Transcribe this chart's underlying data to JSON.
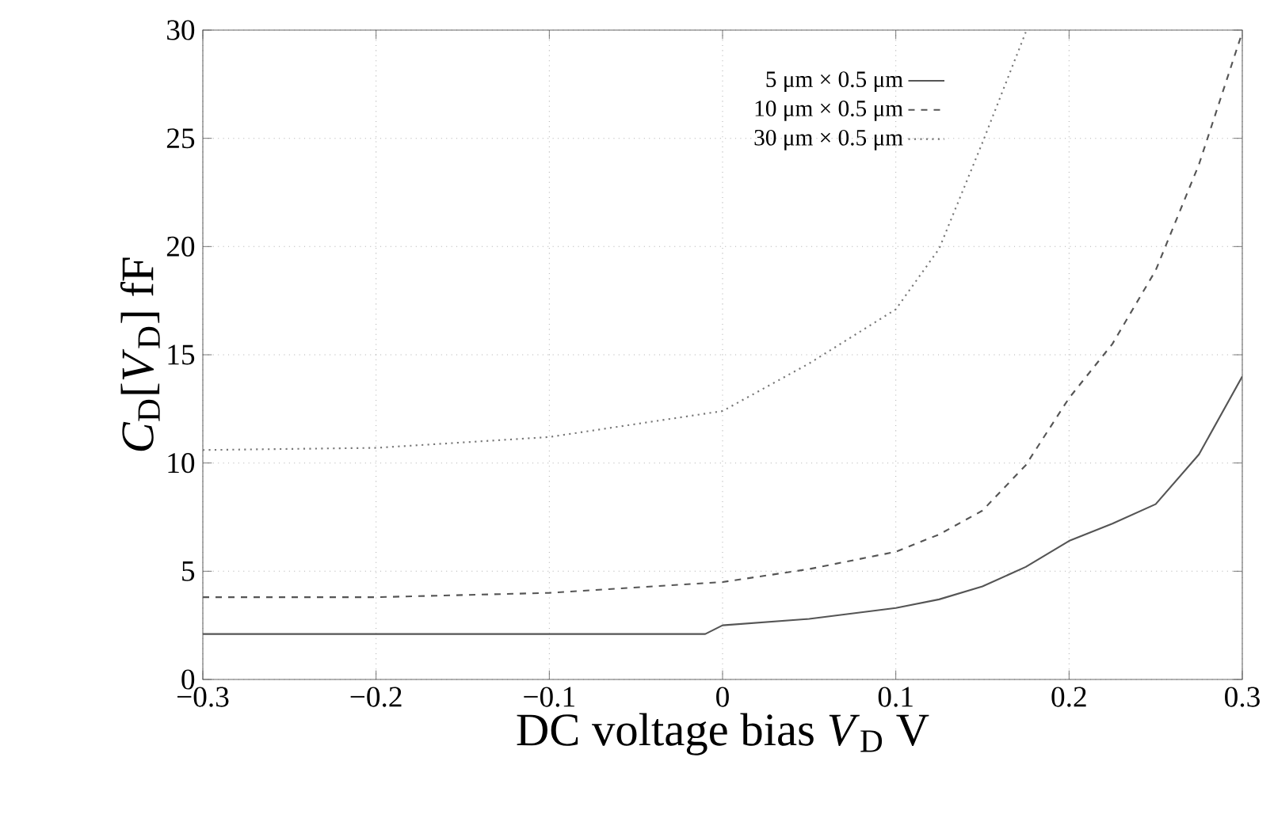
{
  "chart_data": {
    "type": "line",
    "xlabel": "DC voltage bias *V*$_{D}$ V",
    "ylabel": "*C*$_{D}$[*V*$_{D}$] fF",
    "xlim": [
      -0.3,
      0.3
    ],
    "ylim": [
      0,
      30
    ],
    "xticks": [
      {
        "value": -0.3,
        "label": "−0.3"
      },
      {
        "value": -0.2,
        "label": "−0.2"
      },
      {
        "value": -0.1,
        "label": "−0.1"
      },
      0,
      0.1,
      0.2,
      0.3
    ],
    "yticks": [
      0,
      5,
      10,
      15,
      20,
      25,
      30
    ],
    "grid": true,
    "legend": "top",
    "marker": "none",
    "series": [
      {
        "name": "5 μm × 0.5 μm",
        "color": "#555555",
        "line_style": "solid",
        "x": [
          -0.3,
          -0.2,
          -0.1,
          -0.01,
          0,
          0.05,
          0.1,
          0.125,
          0.15,
          0.175,
          0.2,
          0.225,
          0.25,
          0.275,
          0.3
        ],
        "values": [
          2.1,
          2.1,
          2.1,
          2.1,
          2.5,
          2.8,
          3.3,
          3.7,
          4.3,
          5.2,
          6.4,
          7.2,
          8.1,
          10.4,
          14.0
        ]
      },
      {
        "name": "10 μm × 0.5 μm",
        "color": "#555555",
        "line_style": "dashed",
        "x": [
          -0.3,
          -0.2,
          -0.1,
          0,
          0.05,
          0.1,
          0.125,
          0.15,
          0.175,
          0.2,
          0.225,
          0.25,
          0.275,
          0.3
        ],
        "values": [
          3.8,
          3.8,
          4.0,
          4.5,
          5.1,
          5.9,
          6.7,
          7.8,
          9.9,
          13.0,
          15.5,
          18.9,
          23.8,
          29.9
        ]
      },
      {
        "name": "30 μm × 0.5 μm",
        "color": "#777777",
        "line_style": "dotted",
        "x": [
          -0.3,
          -0.2,
          -0.1,
          -0.05,
          0,
          0.05,
          0.1,
          0.125,
          0.15,
          0.175
        ],
        "values": [
          10.6,
          10.7,
          11.2,
          11.8,
          12.4,
          14.6,
          17.1,
          19.9,
          24.8,
          29.9
        ]
      }
    ]
  }
}
